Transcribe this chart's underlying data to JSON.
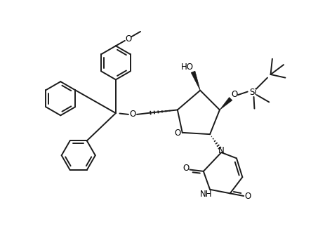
{
  "background_color": "#ffffff",
  "line_color": "#1a1a1a",
  "line_width": 1.4,
  "text_color": "#000000",
  "figsize": [
    4.64,
    3.36
  ],
  "dpi": 100,
  "xlim": [
    0,
    10
  ],
  "ylim": [
    0,
    7.2
  ]
}
